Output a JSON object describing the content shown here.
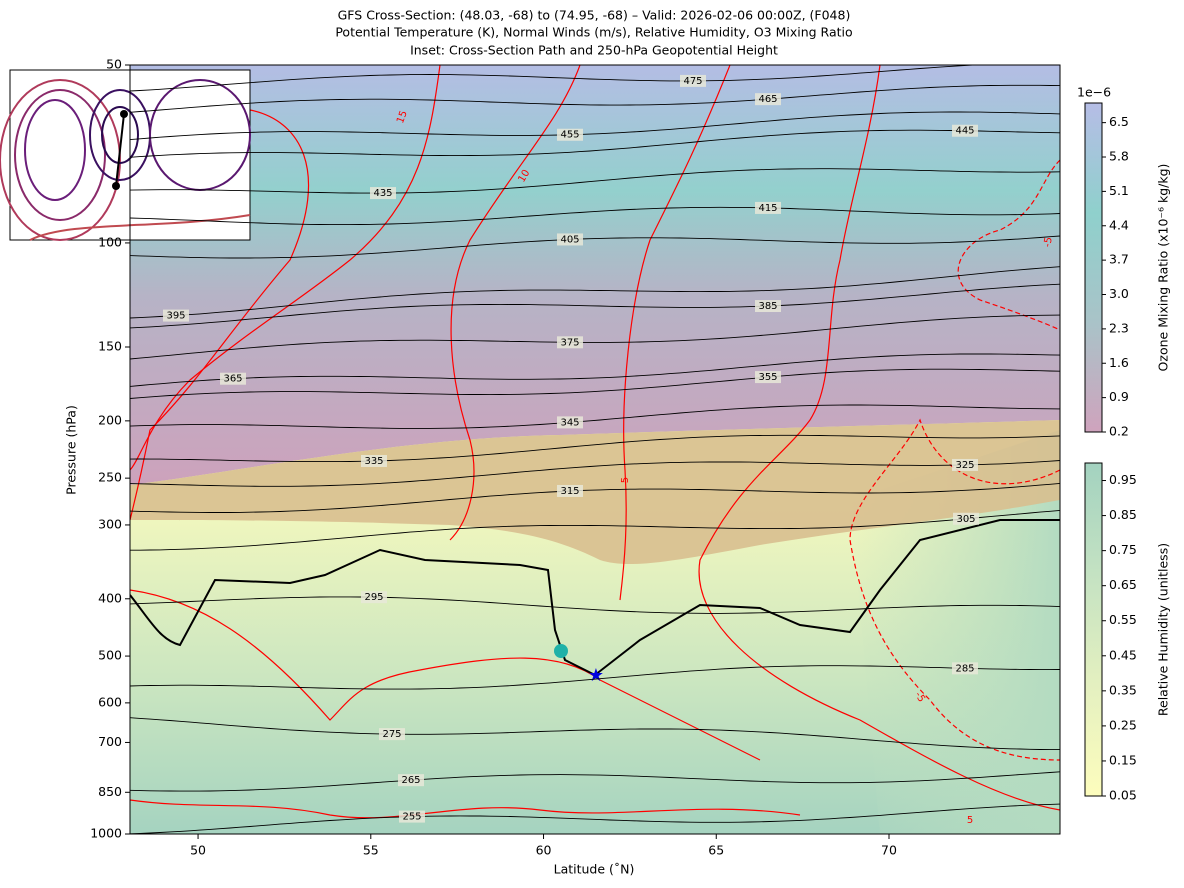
{
  "chart_data": {
    "type": "contour",
    "title": "GFS Cross-Section: (48.03, -68) to (74.95, -68) – Valid: 2026-02-06 00:00Z, (F048)",
    "subtitle": "Potential Temperature (K), Normal Winds (m/s), Relative Humidity, O3 Mixing Ratio",
    "inset_title": "Inset: Cross-Section Path and 250-hPa Geopotential Height",
    "x_label": "Latitude (˚N)",
    "y_label": "Pressure (hPa)",
    "xlim": [
      48.03,
      74.95
    ],
    "ylim": [
      1000,
      50
    ],
    "y_scale": "log",
    "xticks": [
      50,
      55,
      60,
      65,
      70
    ],
    "yticks": [
      50,
      100,
      150,
      200,
      250,
      300,
      400,
      500,
      600,
      700,
      850,
      1000
    ],
    "theta_contour_color": "#000000",
    "theta_levels": [
      255,
      265,
      275,
      285,
      295,
      305,
      315,
      325,
      335,
      345,
      355,
      365,
      375,
      385,
      395,
      405,
      415,
      435,
      445,
      455,
      465,
      475
    ],
    "wind_contour_color": "#ff0000",
    "wind_levels": [
      15,
      10,
      5,
      -5,
      -5,
      5
    ],
    "colorbars": [
      {
        "label": "Ozone Mixing Ratio (x10⁻⁶ kg/kg)",
        "offset_label": "1e−6",
        "lim": [
          0.2,
          6.9
        ],
        "colors": [
          "#cfa3bd",
          "#a9c3c8",
          "#8fd0cc",
          "#b6bde6"
        ],
        "ticks": [
          0.2,
          0.9,
          1.6,
          2.3,
          {
            "value": 3,
            "label": "3.0"
          },
          3.7,
          4.4,
          5.1,
          5.8,
          6.5
        ]
      },
      {
        "label": "Relative Humidity (unitless)",
        "lim": [
          0.05,
          1.0
        ],
        "colors": [
          "#fdfdbd",
          "#e4f0c0",
          "#c4e2c2",
          "#a3d2c0"
        ],
        "ticks": [
          0.05,
          0.15,
          0.25,
          0.35,
          0.45,
          0.55,
          0.65,
          0.75,
          0.85,
          0.95
        ]
      }
    ]
  }
}
